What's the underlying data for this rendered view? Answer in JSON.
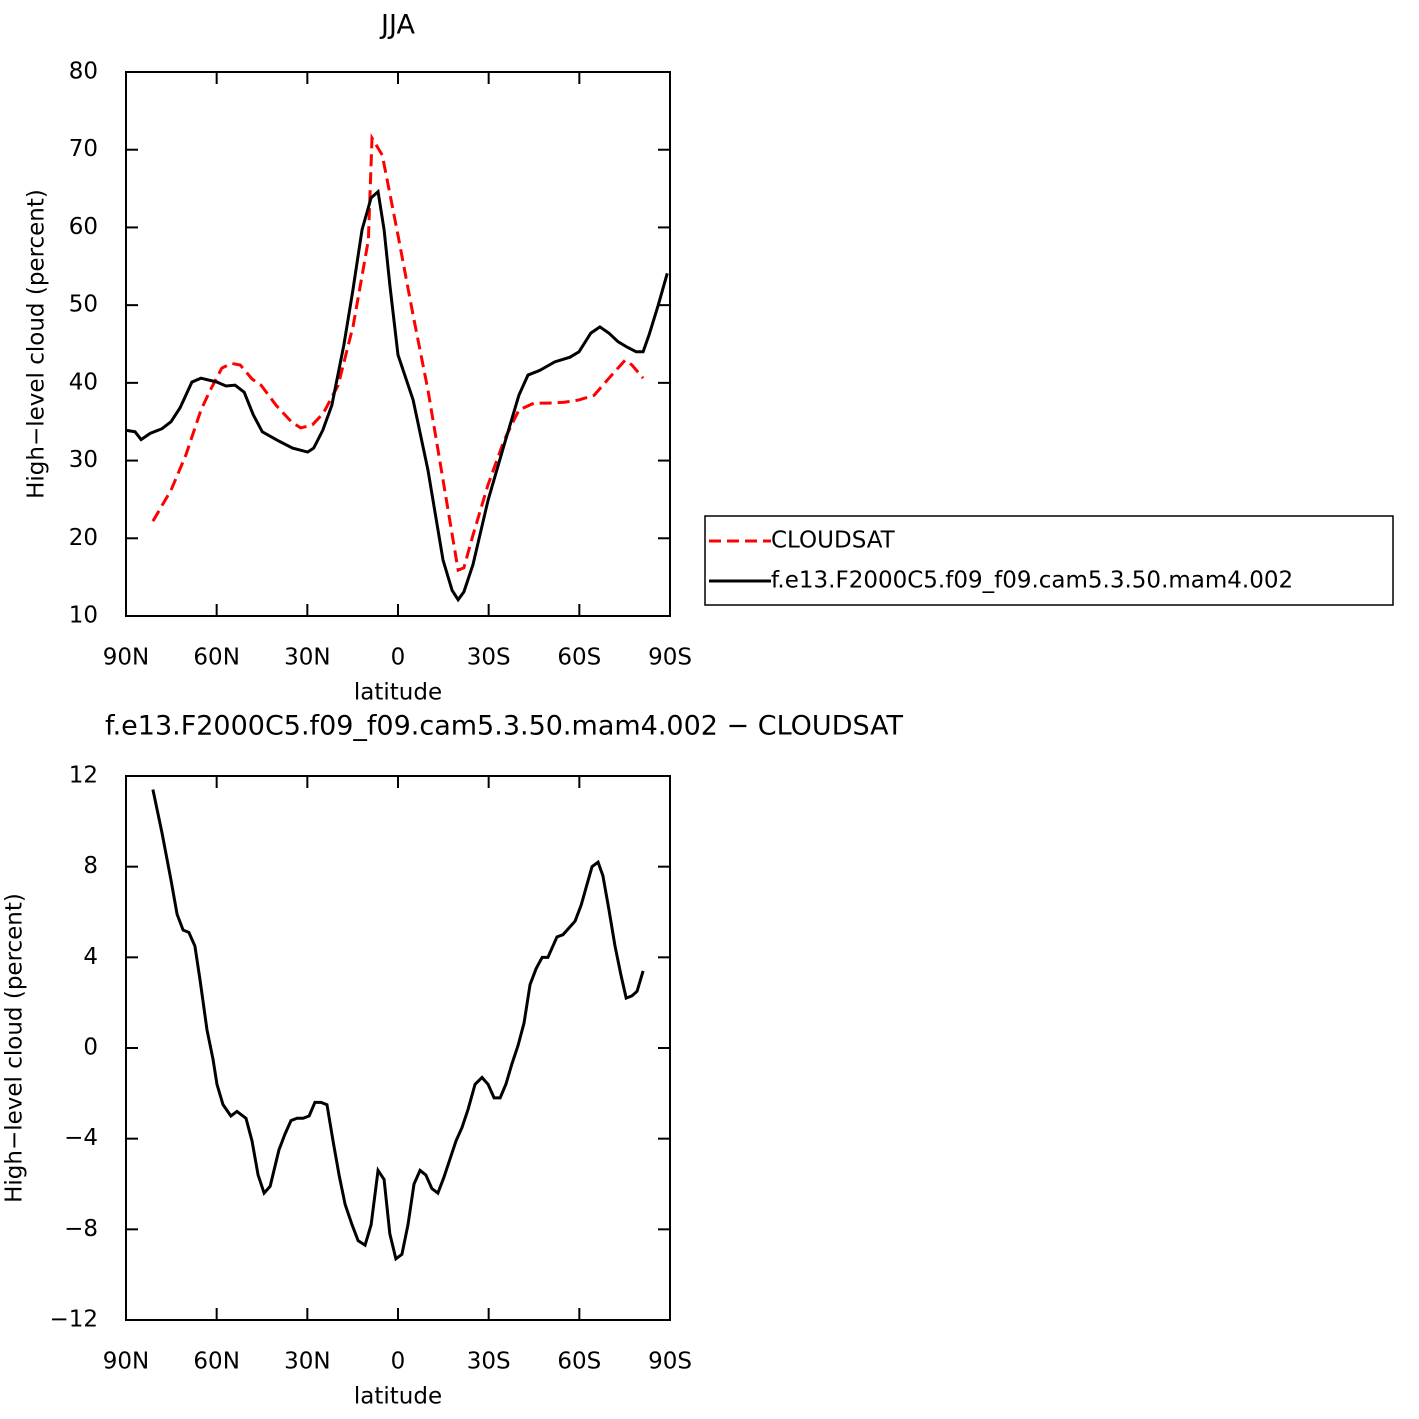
{
  "chart_data": [
    {
      "type": "line",
      "title": "JJA",
      "xlabel": "latitude",
      "ylabel": "High−level cloud (percent)",
      "xlim": [
        90,
        -90
      ],
      "xticks": [
        {
          "value": 90,
          "label": "90N"
        },
        {
          "value": 60,
          "label": "60N"
        },
        {
          "value": 30,
          "label": "30N"
        },
        0,
        {
          "value": -30,
          "label": "30S"
        },
        {
          "value": -60,
          "label": "60S"
        },
        {
          "value": -90,
          "label": "90S"
        }
      ],
      "ylim": [
        10,
        80
      ],
      "yticks": [
        10,
        20,
        30,
        40,
        50,
        60,
        70,
        80
      ],
      "legend": "right",
      "series": [
        {
          "name": "CLOUDSAT",
          "color": "#ff0000",
          "linestyle": "dashed",
          "x": [
            81.1,
            75.1,
            70.2,
            65.2,
            62.2,
            58.3,
            55.1,
            52.2,
            48.3,
            45.3,
            40.3,
            35.3,
            32.2,
            28.3,
            24.7,
            19.8,
            14.8,
            9.8,
            8.6,
            5.2,
            0,
            -5,
            -9.9,
            -14.9,
            -19.9,
            -21.8,
            -24.8,
            -29.8,
            -35.1,
            -40,
            -45,
            -50,
            -55,
            -59.9,
            -64.9,
            -69.8,
            -75.1,
            -77.4,
            -81.1
          ],
          "values": [
            22.2,
            26.2,
            30.7,
            36.5,
            39,
            41.9,
            42.5,
            42.3,
            40.5,
            39.7,
            37.1,
            35,
            34.2,
            34.6,
            36.1,
            39.7,
            47.4,
            58.4,
            71.5,
            69.3,
            59,
            48.7,
            39.1,
            27.5,
            15.9,
            16.2,
            20.4,
            26.9,
            32.6,
            36.5,
            37.4,
            37.4,
            37.5,
            37.8,
            38.4,
            40.6,
            42.9,
            42.3,
            40.6
          ]
        },
        {
          "name": "f.e13.F2000C5.f09_f09.cam5.3.50.mam4.002",
          "color": "#000000",
          "linestyle": "solid",
          "x": [
            90,
            87,
            85,
            82,
            78.1,
            75.1,
            72.1,
            68.2,
            65.2,
            59.9,
            56.9,
            53.9,
            50.9,
            47.9,
            44.9,
            39.9,
            34.9,
            29.9,
            27.9,
            24.9,
            21.9,
            17.9,
            14.9,
            11.9,
            8.9,
            6.6,
            4.6,
            2.7,
            0,
            -5,
            -9.9,
            -14.9,
            -17.9,
            -19.9,
            -21.8,
            -24.8,
            -29.8,
            -35.1,
            -40,
            -43,
            -46.9,
            -51.9,
            -56.9,
            -59.9,
            -63.8,
            -66.8,
            -69.8,
            -72.8,
            -75.8,
            -78.8,
            -81.1,
            -83.1,
            -86.1,
            -89.1
          ],
          "values": [
            33.9,
            33.7,
            32.7,
            33.5,
            34.1,
            35,
            36.8,
            40.1,
            40.6,
            40.1,
            39.6,
            39.7,
            38.8,
            35.9,
            33.7,
            32.6,
            31.6,
            31.1,
            31.6,
            33.9,
            37.1,
            44.9,
            52,
            59.7,
            63.8,
            64.6,
            59.7,
            52.6,
            43.6,
            37.8,
            28.8,
            17.2,
            13.3,
            12.1,
            13.1,
            16.6,
            24.9,
            32,
            38.4,
            41,
            41.6,
            42.7,
            43.3,
            44,
            46.4,
            47.2,
            46.4,
            45.3,
            44.6,
            44,
            44,
            46.2,
            50,
            54.1
          ]
        }
      ]
    },
    {
      "type": "line",
      "title": "f.e13.F2000C5.f09_f09.cam5.3.50.mam4.002 − CLOUDSAT",
      "xlabel": "latitude",
      "ylabel": "High−level cloud (percent)",
      "xlim": [
        90,
        -90
      ],
      "xticks": [
        {
          "value": 90,
          "label": "90N"
        },
        {
          "value": 60,
          "label": "60N"
        },
        {
          "value": 30,
          "label": "30N"
        },
        0,
        {
          "value": -30,
          "label": "30S"
        },
        {
          "value": -60,
          "label": "60S"
        },
        {
          "value": -90,
          "label": "90S"
        }
      ],
      "ylim": [
        -12,
        12
      ],
      "yticks": [
        {
          "value": -12,
          "label": "−12"
        },
        {
          "value": -8,
          "label": "−8"
        },
        {
          "value": -4,
          "label": "−4"
        },
        0,
        4,
        8,
        12
      ],
      "series": [
        {
          "color": "#000000",
          "linestyle": "solid",
          "x": [
            81.1,
            78.1,
            75.1,
            73.1,
            71.1,
            69.2,
            67.2,
            65.5,
            63.2,
            61.2,
            59.9,
            57.9,
            55.3,
            53.3,
            50.3,
            48.3,
            46.3,
            44.3,
            42.3,
            39.4,
            37.4,
            35.4,
            33.4,
            31.4,
            29.4,
            27.5,
            25.5,
            23.5,
            21.5,
            19.5,
            17.5,
            15.2,
            13.2,
            10.9,
            8.9,
            6.6,
            4.6,
            2.7,
            0.7,
            -1.3,
            -3.3,
            -5.3,
            -7.3,
            -9.2,
            -11.2,
            -13.2,
            -15.2,
            -17.2,
            -19.2,
            -21.2,
            -23.2,
            -25.5,
            -27.8,
            -29.8,
            -31.8,
            -33.8,
            -35.7,
            -37.7,
            -39.7,
            -41.7,
            -43.7,
            -45.7,
            -47.7,
            -49.6,
            -52.6,
            -54.6,
            -56.6,
            -58.6,
            -60.6,
            -62.5,
            -64.2,
            -66.2,
            -67.8,
            -69.8,
            -71.8,
            -73.8,
            -75.5,
            -77.4,
            -79.1,
            -81.1
          ],
          "values": [
            11.4,
            9.5,
            7.4,
            5.9,
            5.2,
            5.1,
            4.5,
            3,
            0.8,
            -0.5,
            -1.6,
            -2.5,
            -3,
            -2.8,
            -3.1,
            -4.1,
            -5.6,
            -6.4,
            -6.1,
            -4.5,
            -3.8,
            -3.2,
            -3.1,
            -3.1,
            -3,
            -2.4,
            -2.4,
            -2.5,
            -4.1,
            -5.6,
            -6.9,
            -7.8,
            -8.5,
            -8.7,
            -7.8,
            -5.4,
            -5.8,
            -8.2,
            -9.3,
            -9.1,
            -7.8,
            -6,
            -5.4,
            -5.6,
            -6.2,
            -6.4,
            -5.7,
            -4.9,
            -4.1,
            -3.5,
            -2.7,
            -1.6,
            -1.3,
            -1.6,
            -2.2,
            -2.2,
            -1.6,
            -0.7,
            0.1,
            1.1,
            2.8,
            3.5,
            4,
            4,
            4.9,
            5,
            5.3,
            5.6,
            6.3,
            7.2,
            8,
            8.2,
            7.6,
            6.1,
            4.5,
            3.2,
            2.2,
            2.3,
            2.5,
            3.4
          ]
        }
      ]
    }
  ]
}
